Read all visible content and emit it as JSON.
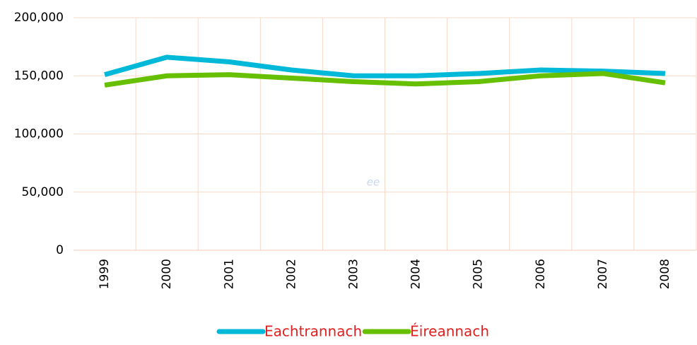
{
  "chart_data": {
    "type": "line",
    "categories": [
      "1999",
      "2000",
      "2001",
      "2002",
      "2003",
      "2004",
      "2005",
      "2006",
      "2007",
      "2008"
    ],
    "series": [
      {
        "name": "Eachtrannach",
        "color": "#00b8d8",
        "values": [
          151000,
          166000,
          162000,
          155000,
          150000,
          150000,
          152000,
          155000,
          154000,
          152000
        ]
      },
      {
        "name": "Éireannach",
        "color": "#66c000",
        "values": [
          142000,
          150000,
          151000,
          148000,
          145000,
          143000,
          145000,
          150000,
          152000,
          144000
        ]
      }
    ],
    "ylim": [
      0,
      200000
    ],
    "yticks": [
      0,
      {
        "value": 50000,
        "label": "50,000"
      },
      {
        "value": 100000,
        "label": "100,000"
      },
      {
        "value": 150000,
        "label": "150,000"
      },
      {
        "value": 200000,
        "label": "200,000"
      }
    ],
    "grid": true,
    "annotation": "ee",
    "legend_color": "#e02020"
  }
}
